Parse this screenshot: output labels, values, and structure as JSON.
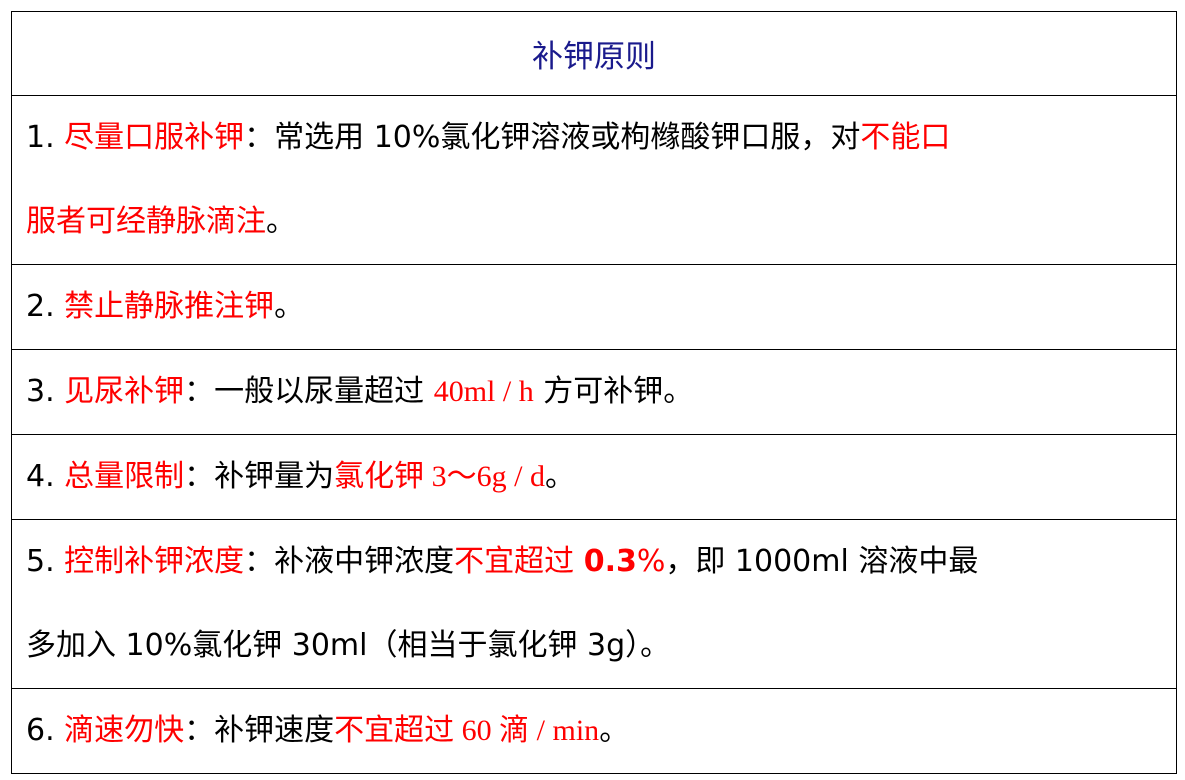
{
  "title": "补钾原则",
  "colors": {
    "title": "#1a1a8c",
    "highlight": "#ff0000",
    "text": "#000000"
  },
  "rows": [
    {
      "lines": [
        [
          {
            "t": "1. "
          },
          {
            "t": "尽量口服补钾",
            "red": true
          },
          {
            "t": "：常选用 10%氯化钾溶液或枸橼酸钾口服，对"
          },
          {
            "t": "不能口",
            "red": true
          }
        ],
        [
          {
            "t": "服者可经静脉滴注",
            "red": true
          },
          {
            "t": "。"
          }
        ]
      ]
    },
    {
      "lines": [
        [
          {
            "t": "2. "
          },
          {
            "t": "禁止静脉推注钾",
            "red": true
          },
          {
            "t": "。"
          }
        ]
      ]
    },
    {
      "lines": [
        [
          {
            "t": "3. "
          },
          {
            "t": "见尿补钾",
            "red": true
          },
          {
            "t": "：一般以尿量超过 "
          },
          {
            "t": "40ml / h",
            "red": true,
            "serif": true
          },
          {
            "t": " 方可补钾。"
          }
        ]
      ]
    },
    {
      "lines": [
        [
          {
            "t": "4. "
          },
          {
            "t": "总量限制",
            "red": true
          },
          {
            "t": "：补钾量为"
          },
          {
            "t": "氯化钾 3～6g / d",
            "red": true,
            "serif": true
          },
          {
            "t": "。"
          }
        ]
      ]
    },
    {
      "lines": [
        [
          {
            "t": "5. "
          },
          {
            "t": "控制补钾浓度",
            "red": true
          },
          {
            "t": "：补液中钾浓度"
          },
          {
            "t": "不宜超过 ",
            "red": true
          },
          {
            "t": "0.3",
            "red": true,
            "bold": true
          },
          {
            "t": "%",
            "red": true
          },
          {
            "t": "，即 1000ml 溶液中最"
          }
        ],
        [
          {
            "t": "多加入 10%氯化钾 30ml（相当于氯化钾 3g）。"
          }
        ]
      ]
    },
    {
      "lines": [
        [
          {
            "t": "6. "
          },
          {
            "t": "滴速勿快",
            "red": true
          },
          {
            "t": "：补钾速度"
          },
          {
            "t": "不宜超过 60 滴 / min",
            "red": true,
            "serif": true
          },
          {
            "t": "。"
          }
        ]
      ]
    }
  ]
}
